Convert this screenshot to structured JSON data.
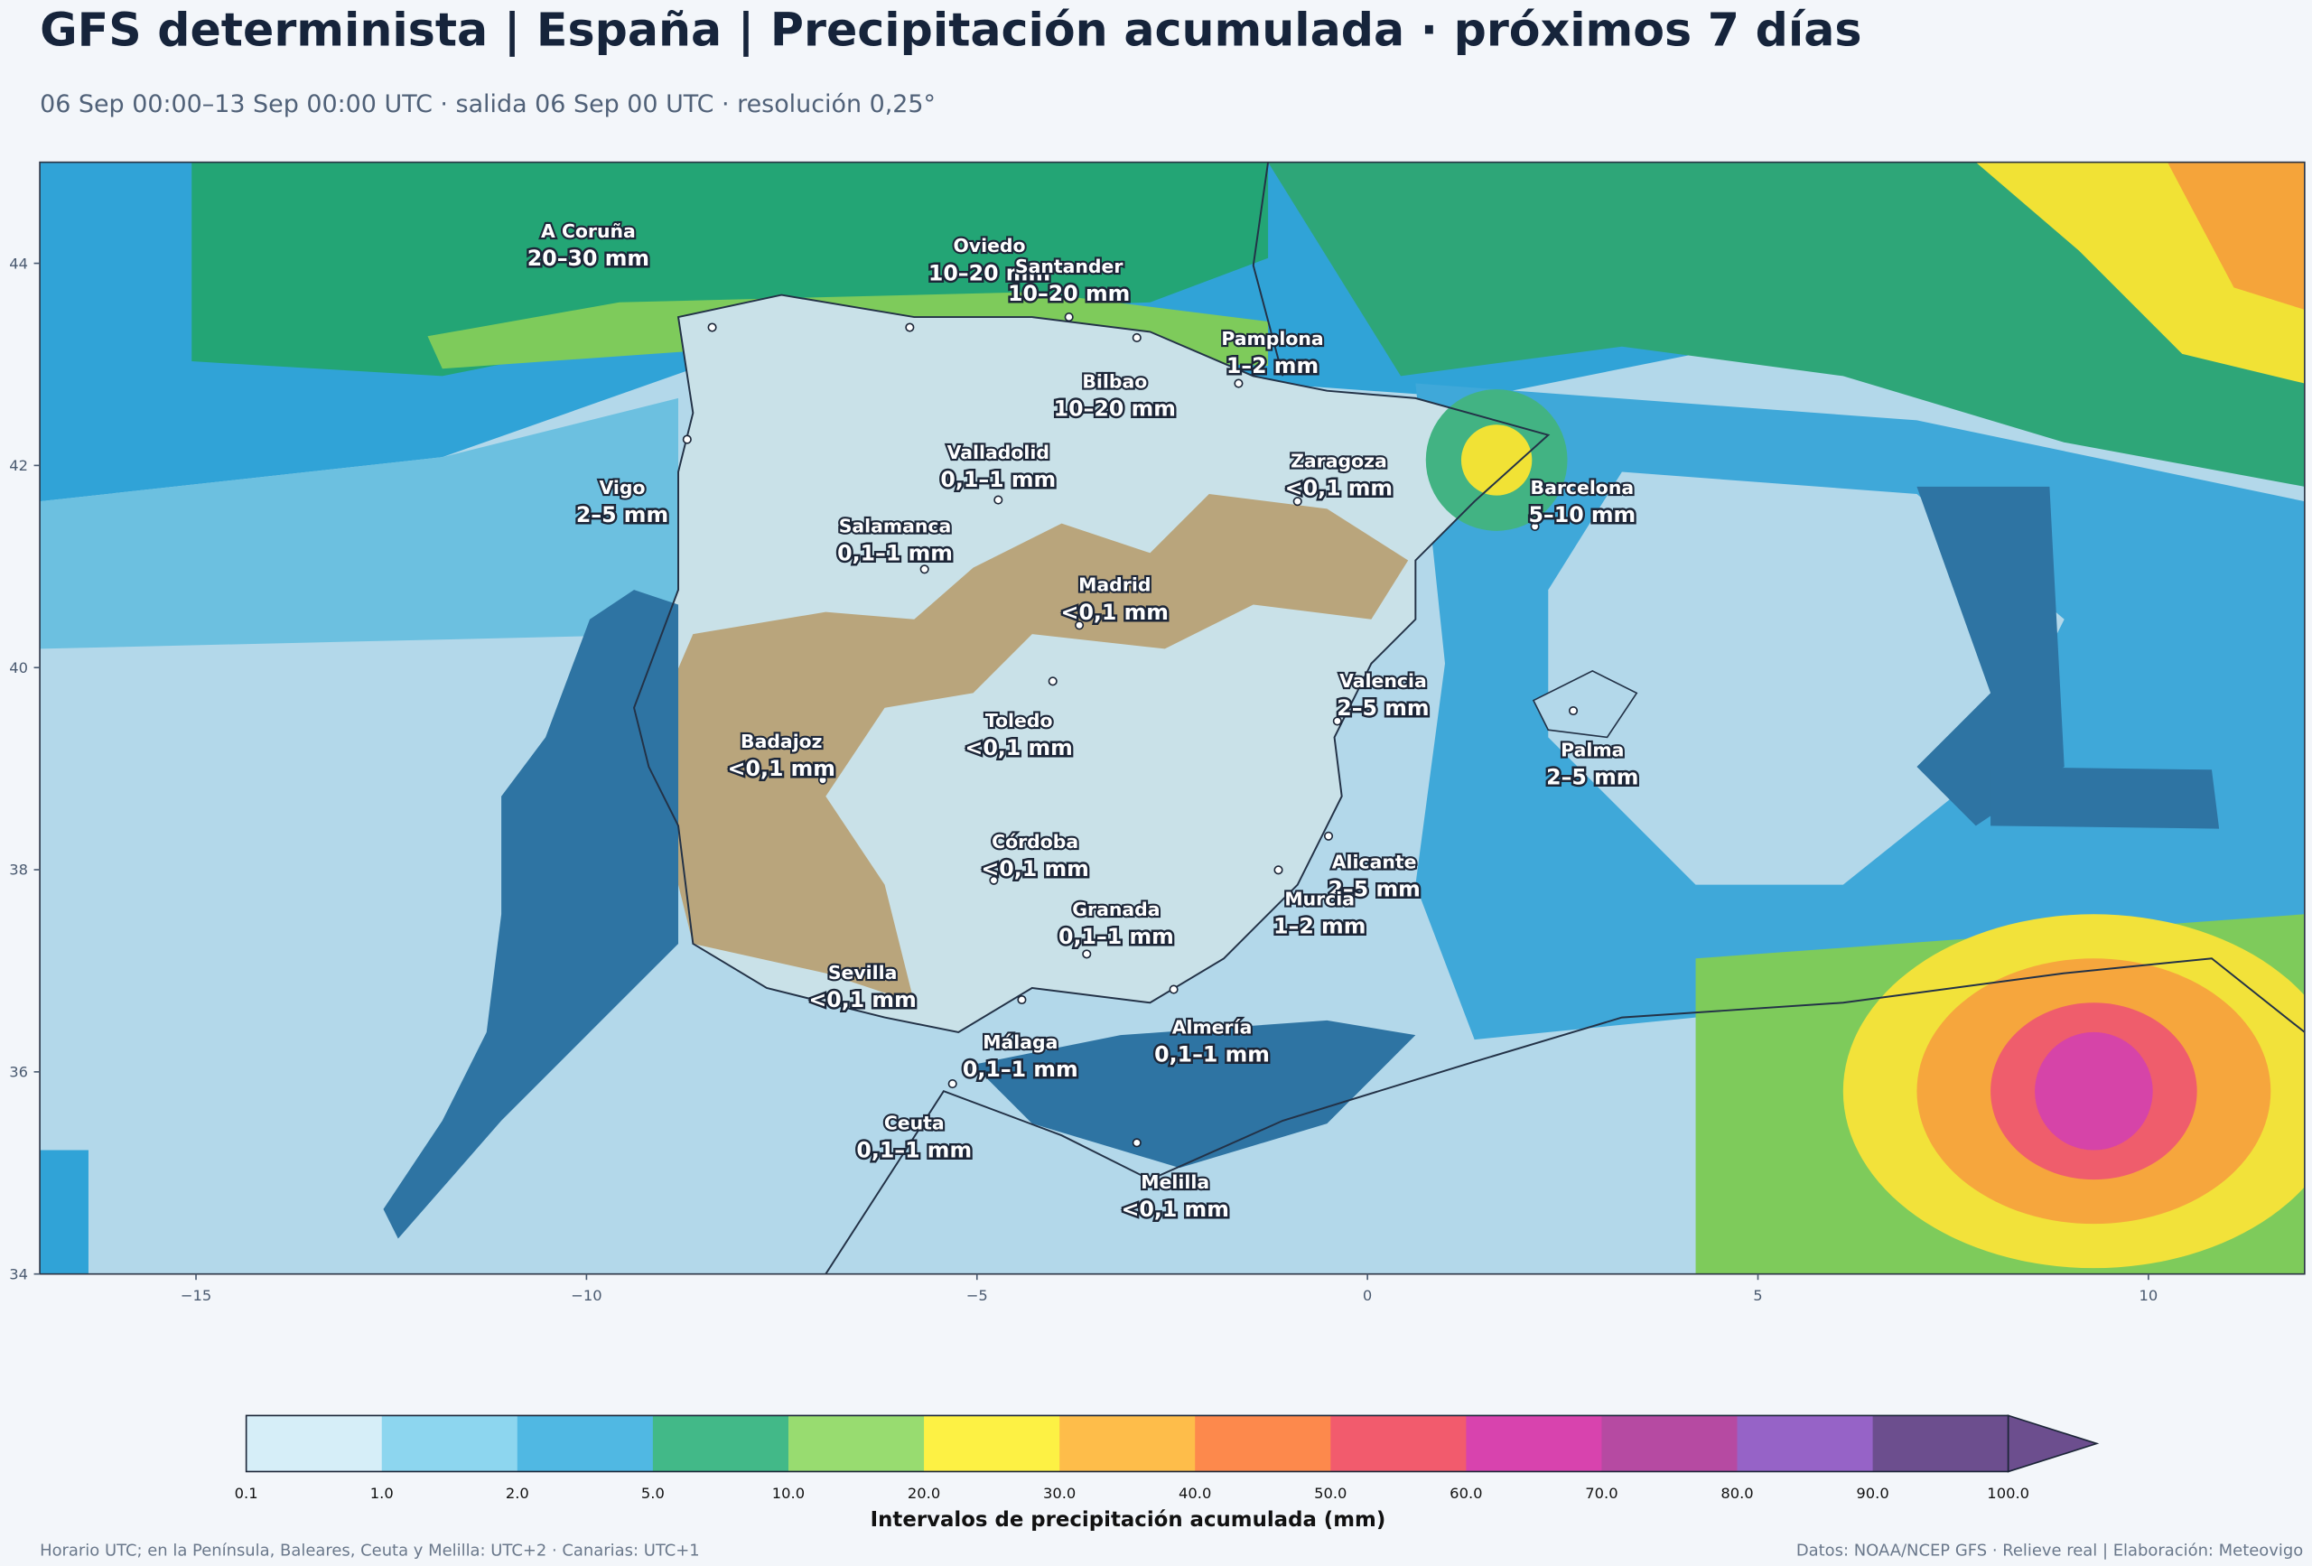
{
  "header": {
    "title": "GFS determinista | España | Precipitación acumulada · próximos 7 días",
    "subtitle": "06 Sep 00:00–13 Sep 00:00 UTC · salida 06 Sep 00 UTC · resolución 0,25°"
  },
  "map": {
    "xlim": [
      -17,
      12
    ],
    "ylim": [
      34,
      45
    ],
    "xticks": [
      {
        "value": -15,
        "label": "−15"
      },
      {
        "value": -10,
        "label": "−10"
      },
      {
        "value": -5,
        "label": "−5"
      },
      0,
      5,
      10
    ],
    "yticks": [
      34,
      36,
      38,
      40,
      42,
      44
    ],
    "cities": [
      {
        "name": "A Coruña",
        "precip": "20–30 mm"
      },
      {
        "name": "Oviedo",
        "precip": "10–20 mm"
      },
      {
        "name": "Santander",
        "precip": "10–20 mm"
      },
      {
        "name": "Pamplona",
        "precip": "1–2 mm"
      },
      {
        "name": "Bilbao",
        "precip": "10–20 mm"
      },
      {
        "name": "Valladolid",
        "precip": "0,1–1 mm"
      },
      {
        "name": "Zaragoza",
        "precip": "<0,1 mm"
      },
      {
        "name": "Vigo",
        "precip": "2–5 mm"
      },
      {
        "name": "Barcelona",
        "precip": "5–10 mm"
      },
      {
        "name": "Salamanca",
        "precip": "0,1–1 mm"
      },
      {
        "name": "Madrid",
        "precip": "<0,1 mm"
      },
      {
        "name": "Valencia",
        "precip": "2–5 mm"
      },
      {
        "name": "Toledo",
        "precip": "<0,1 mm"
      },
      {
        "name": "Badajoz",
        "precip": "<0,1 mm"
      },
      {
        "name": "Palma",
        "precip": "2–5 mm"
      },
      {
        "name": "Córdoba",
        "precip": "<0,1 mm"
      },
      {
        "name": "Alicante",
        "precip": "2–5 mm"
      },
      {
        "name": "Granada",
        "precip": "0,1–1 mm"
      },
      {
        "name": "Murcia",
        "precip": "1–2 mm"
      },
      {
        "name": "Sevilla",
        "precip": "<0,1 mm"
      },
      {
        "name": "Almería",
        "precip": "0,1–1 mm"
      },
      {
        "name": "Málaga",
        "precip": "0,1–1 mm"
      },
      {
        "name": "Ceuta",
        "precip": "0,1–1 mm"
      },
      {
        "name": "Melilla",
        "precip": "<0,1 mm"
      }
    ]
  },
  "colorbar": {
    "title": "Intervalos de precipitación acumulada (mm)",
    "levels": [
      0.1,
      {
        "value": 1,
        "label": "1.0"
      },
      {
        "value": 2,
        "label": "2.0"
      },
      {
        "value": 5,
        "label": "5.0"
      },
      {
        "value": 10,
        "label": "10.0"
      },
      {
        "value": 20,
        "label": "20.0"
      },
      {
        "value": 30,
        "label": "30.0"
      },
      {
        "value": 40,
        "label": "40.0"
      },
      {
        "value": 50,
        "label": "50.0"
      },
      {
        "value": 60,
        "label": "60.0"
      },
      {
        "value": 70,
        "label": "70.0"
      },
      {
        "value": 80,
        "label": "80.0"
      },
      {
        "value": 90,
        "label": "90.0"
      },
      {
        "value": 100,
        "label": "100.0"
      }
    ],
    "colors": [
      "#d6eef8",
      "#8dd6ef",
      "#50b8e3",
      "#42b988",
      "#98dc70",
      "#fdf144",
      "#febd4a",
      "#fd894c",
      "#f25b6d",
      "#d843ae",
      "#b64aa2",
      "#9663c7",
      "#6c4e8e"
    ],
    "extend_color": "#6c4e8e"
  },
  "footer": {
    "left": "Horario UTC; en la Península, Baleares, Ceuta y Melilla: UTC+2 · Canarias: UTC+1",
    "right": "Datos: NOAA/NCEP GFS · Relieve real | Elaboración: Meteovigo"
  }
}
